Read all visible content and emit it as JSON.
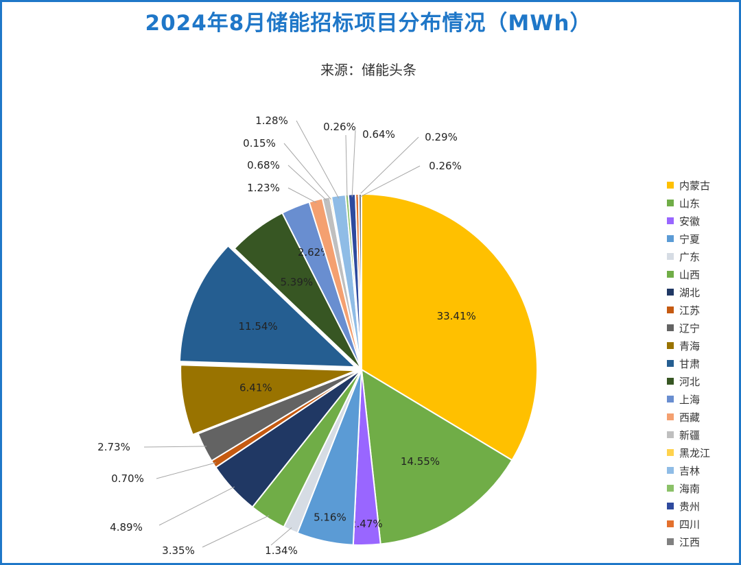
{
  "chart_data": {
    "type": "pie",
    "title": "2024年8月储能招标项目分布情况（MWh）",
    "subtitle": "来源：储能头条",
    "legend_position": "right",
    "slices": [
      {
        "name": "内蒙古",
        "label": "33.41%",
        "value": 33.41,
        "color": "#ffc000"
      },
      {
        "name": "山东",
        "label": "14.55%",
        "value": 14.55,
        "color": "#70ad47"
      },
      {
        "name": "安徽",
        "label": "2.47%",
        "value": 2.47,
        "color": "#9966ff"
      },
      {
        "name": "宁夏",
        "label": "5.16%",
        "value": 5.16,
        "color": "#5b9bd5"
      },
      {
        "name": "广东",
        "label": "1.34%",
        "value": 1.34,
        "color": "#d6dce4"
      },
      {
        "name": "山西",
        "label": "3.35%",
        "value": 3.35,
        "color": "#70ad47"
      },
      {
        "name": "湖北",
        "label": "4.89%",
        "value": 4.89,
        "color": "#203864"
      },
      {
        "name": "江苏",
        "label": "0.70%",
        "value": 0.7,
        "color": "#c55a11"
      },
      {
        "name": "辽宁",
        "label": "2.73%",
        "value": 2.73,
        "color": "#636363"
      },
      {
        "name": "青海",
        "label": "6.41%",
        "value": 6.41,
        "color": "#997300"
      },
      {
        "name": "甘肃",
        "label": "11.54%",
        "value": 11.54,
        "color": "#255e91"
      },
      {
        "name": "河北",
        "label": "5.39%",
        "value": 5.39,
        "color": "#375623"
      },
      {
        "name": "上海",
        "label": "2.62%",
        "value": 2.62,
        "color": "#698ed0"
      },
      {
        "name": "西藏",
        "label": "1.23%",
        "value": 1.23,
        "color": "#f4a070"
      },
      {
        "name": "新疆",
        "label": "0.68%",
        "value": 0.68,
        "color": "#bfbfbf"
      },
      {
        "name": "黑龙江",
        "label": "0.15%",
        "value": 0.15,
        "color": "#ffd24d"
      },
      {
        "name": "吉林",
        "label": "1.28%",
        "value": 1.28,
        "color": "#8fbce6"
      },
      {
        "name": "海南",
        "label": "0.26%",
        "value": 0.26,
        "color": "#8bc168"
      },
      {
        "name": "贵州",
        "label": "0.64%",
        "value": 0.64,
        "color": "#2e4a9e"
      },
      {
        "name": "四川",
        "label": "0.29%",
        "value": 0.29,
        "color": "#e3702d"
      },
      {
        "name": "江西",
        "label": "0.26%",
        "value": 0.26,
        "color": "#808080"
      }
    ]
  }
}
